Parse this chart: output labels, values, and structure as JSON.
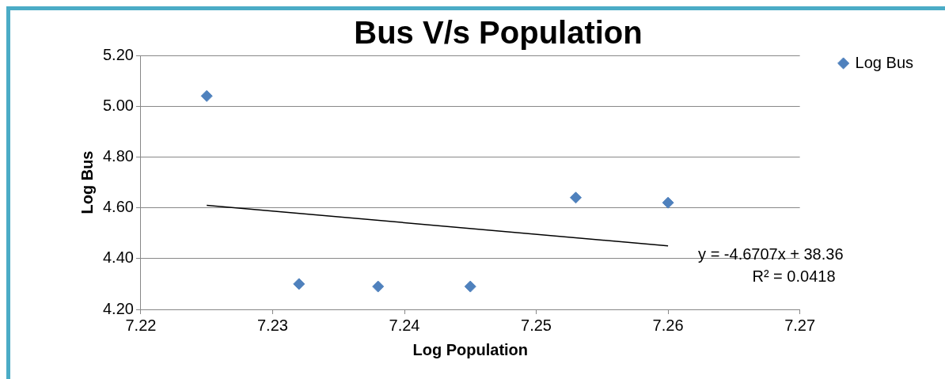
{
  "chart_data": {
    "type": "scatter",
    "title": "Bus V/s Population",
    "xlabel": "Log Population",
    "ylabel": "Log Bus",
    "series": [
      {
        "name": "Log Bus",
        "color": "#4f81bd",
        "marker": "diamond",
        "x": [
          7.225,
          7.232,
          7.238,
          7.245,
          7.253,
          7.26
        ],
        "values": [
          5.04,
          4.3,
          4.29,
          4.29,
          4.64,
          4.62
        ]
      },
      {
        "type": "line",
        "color": "#000000",
        "marker": "none",
        "x": [
          7.225,
          7.26
        ],
        "values": [
          4.61,
          4.45
        ]
      }
    ],
    "xlim": [
      7.22,
      7.27
    ],
    "xticks": [
      7.22,
      7.23,
      7.24,
      7.25,
      7.26,
      7.27
    ],
    "ylim": [
      4.2,
      5.2
    ],
    "yticks": [
      {
        "value": 4.2,
        "label": "4.20"
      },
      {
        "value": 4.4,
        "label": "4.40"
      },
      {
        "value": 4.6,
        "label": "4.60"
      },
      {
        "value": 4.8,
        "label": "4.80"
      },
      {
        "value": 5.0,
        "label": "5.00"
      },
      {
        "value": 5.2,
        "label": "5.20"
      }
    ],
    "grid": "y",
    "legend": "right",
    "annotations": [
      "y = -4.6707x + 38.36",
      "R² = 0.0418"
    ]
  }
}
